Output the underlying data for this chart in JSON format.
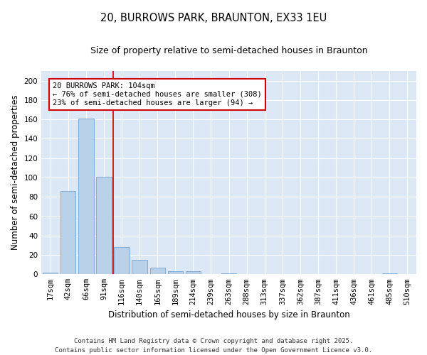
{
  "title_line1": "20, BURROWS PARK, BRAUNTON, EX33 1EU",
  "title_line2": "Size of property relative to semi-detached houses in Braunton",
  "xlabel": "Distribution of semi-detached houses by size in Braunton",
  "ylabel": "Number of semi-detached properties",
  "categories": [
    "17sqm",
    "42sqm",
    "66sqm",
    "91sqm",
    "116sqm",
    "140sqm",
    "165sqm",
    "189sqm",
    "214sqm",
    "239sqm",
    "263sqm",
    "288sqm",
    "313sqm",
    "337sqm",
    "362sqm",
    "387sqm",
    "411sqm",
    "436sqm",
    "461sqm",
    "485sqm",
    "510sqm"
  ],
  "values": [
    2,
    86,
    161,
    101,
    28,
    15,
    7,
    3,
    3,
    0,
    1,
    0,
    0,
    0,
    0,
    0,
    0,
    0,
    0,
    1,
    0
  ],
  "bar_color": "#b8d0e8",
  "bar_edge_color": "#6699cc",
  "vline_x": 3.5,
  "vline_color": "#cc0000",
  "annotation_title": "20 BURROWS PARK: 104sqm",
  "annotation_line1": "← 76% of semi-detached houses are smaller (308)",
  "annotation_line2": "23% of semi-detached houses are larger (94) →",
  "annotation_box_color": "#cc0000",
  "ylim": [
    0,
    210
  ],
  "yticks": [
    0,
    20,
    40,
    60,
    80,
    100,
    120,
    140,
    160,
    180,
    200
  ],
  "footer": "Contains HM Land Registry data © Crown copyright and database right 2025.\nContains public sector information licensed under the Open Government Licence v3.0.",
  "fig_bg_color": "#ffffff",
  "plot_bg_color": "#dce8f5",
  "grid_color": "#ffffff",
  "title_fontsize": 10.5,
  "subtitle_fontsize": 9,
  "axis_label_fontsize": 8.5,
  "tick_fontsize": 7.5,
  "annotation_fontsize": 7.5,
  "footer_fontsize": 6.5
}
